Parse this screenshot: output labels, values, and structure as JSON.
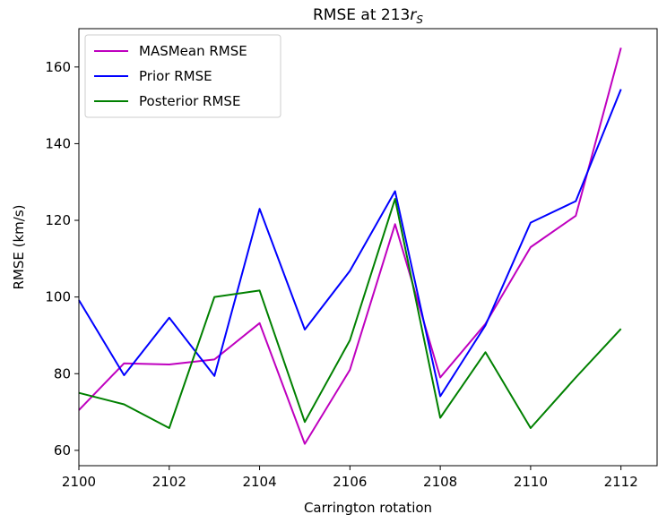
{
  "chart_data": {
    "type": "line",
    "title_prefix": "RMSE at 213",
    "title_var": "r",
    "title_sub": "S",
    "xlabel": "Carrington rotation",
    "ylabel": "RMSE (km/s)",
    "xlim": [
      2100,
      2112.8
    ],
    "ylim": [
      56,
      170
    ],
    "xticks": [
      2100,
      2102,
      2104,
      2106,
      2108,
      2110,
      2112
    ],
    "yticks": [
      60,
      80,
      100,
      120,
      140,
      160
    ],
    "grid": false,
    "legend_position": "top-left",
    "x": [
      2100,
      2101,
      2102,
      2103,
      2104,
      2105,
      2106,
      2107,
      2108,
      2109,
      2110,
      2111,
      2112
    ],
    "series": [
      {
        "name": "MASMean RMSE",
        "color": "#bf00bf",
        "values": [
          70.5,
          82.7,
          82.4,
          83.7,
          93.2,
          61.7,
          81.0,
          119.0,
          79.0,
          93.0,
          113.0,
          121.2,
          165.0
        ]
      },
      {
        "name": "Prior RMSE",
        "color": "#0000ff",
        "values": [
          99.2,
          79.6,
          94.6,
          79.4,
          123.0,
          91.5,
          106.8,
          127.6,
          74.1,
          92.6,
          119.4,
          125.0,
          154.2
        ]
      },
      {
        "name": "Posterior RMSE",
        "color": "#008000",
        "values": [
          75.0,
          72.0,
          65.8,
          100.0,
          101.7,
          67.4,
          88.7,
          125.6,
          68.5,
          85.6,
          65.8,
          79.0,
          91.7
        ]
      }
    ]
  }
}
